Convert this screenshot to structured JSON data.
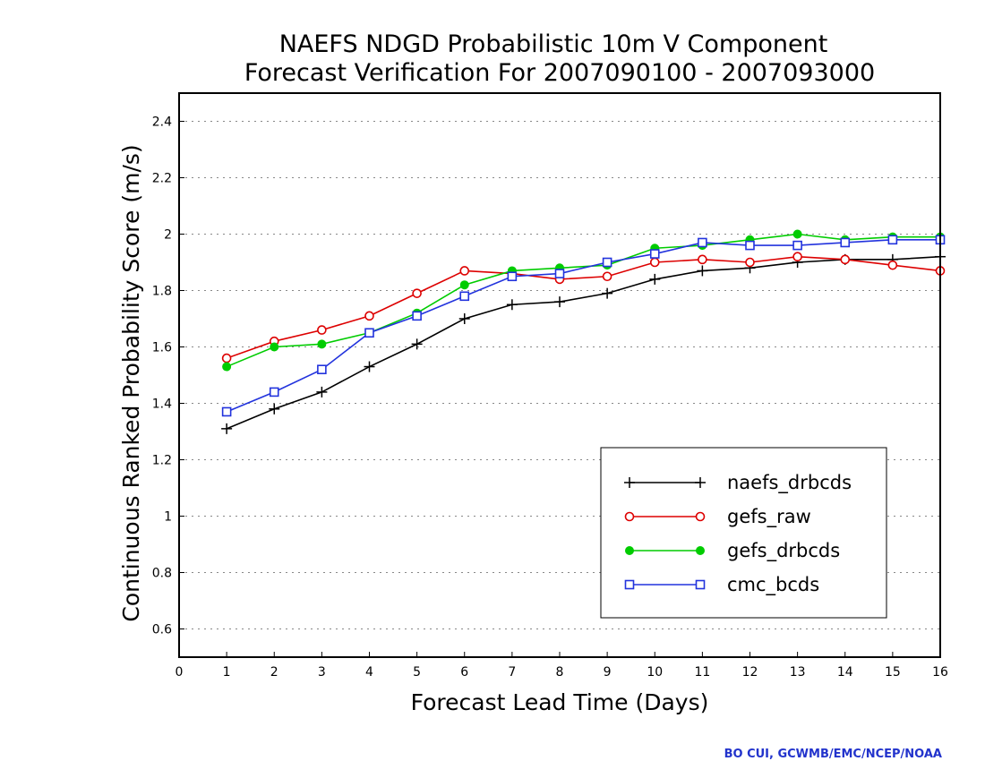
{
  "chart_data": {
    "type": "line",
    "title": "NAEFS NDGD Probabilistic 10m V Component",
    "subtitle": "Forecast Verification For 2007090100 - 2007093000",
    "xlabel": "Forecast Lead Time (Days)",
    "ylabel": "Continuous Ranked Probability Score (m/s)",
    "xlim": [
      0,
      16
    ],
    "ylim": [
      0.5,
      2.5
    ],
    "xticks": [
      "0",
      "1",
      "2",
      "3",
      "4",
      "5",
      "6",
      "7",
      "8",
      "9",
      "10",
      "11",
      "12",
      "13",
      "14",
      "15",
      "16"
    ],
    "yticks": [
      "0.6",
      "0.8",
      "1",
      "1.2",
      "1.4",
      "1.6",
      "1.8",
      "2",
      "2.2",
      "2.4"
    ],
    "grid": true,
    "legend_position": "lower-right",
    "x": [
      1,
      2,
      3,
      4,
      5,
      6,
      7,
      8,
      9,
      10,
      11,
      12,
      13,
      14,
      15,
      16
    ],
    "series": [
      {
        "name": "naefs_drbcds",
        "color": "#000000",
        "marker": "plus",
        "values": [
          1.31,
          1.38,
          1.44,
          1.53,
          1.61,
          1.7,
          1.75,
          1.76,
          1.79,
          1.84,
          1.87,
          1.88,
          1.9,
          1.91,
          1.91,
          1.92
        ]
      },
      {
        "name": "gefs_raw",
        "color": "#dd0000",
        "marker": "open-circle",
        "values": [
          1.56,
          1.62,
          1.66,
          1.71,
          1.79,
          1.87,
          1.86,
          1.84,
          1.85,
          1.9,
          1.91,
          1.9,
          1.92,
          1.91,
          1.89,
          1.87
        ]
      },
      {
        "name": "gefs_drbcds",
        "color": "#00cc00",
        "marker": "filled-circle",
        "values": [
          1.53,
          1.6,
          1.61,
          1.65,
          1.72,
          1.82,
          1.87,
          1.88,
          1.89,
          1.95,
          1.96,
          1.98,
          2.0,
          1.98,
          1.99,
          1.99
        ]
      },
      {
        "name": "cmc_bcds",
        "color": "#2233dd",
        "marker": "open-square",
        "values": [
          1.37,
          1.44,
          1.52,
          1.65,
          1.71,
          1.78,
          1.85,
          1.86,
          1.9,
          1.93,
          1.97,
          1.96,
          1.96,
          1.97,
          1.98,
          1.98
        ]
      }
    ]
  },
  "footer": {
    "credit": "BO CUI, GCWMB/EMC/NCEP/NOAA"
  }
}
